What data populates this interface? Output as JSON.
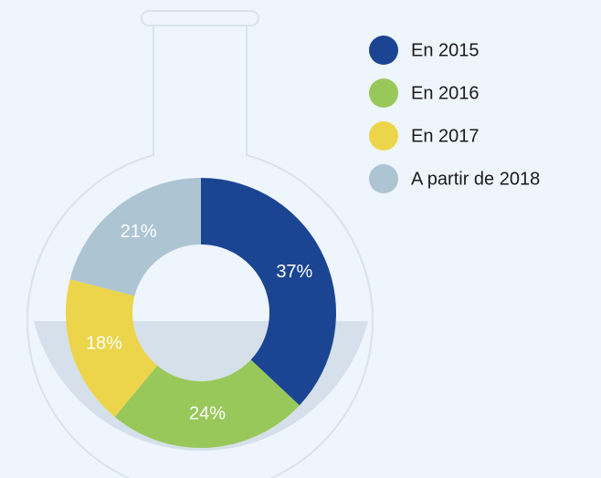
{
  "chart_data": {
    "type": "donut",
    "categories": [
      "En 2015",
      "En 2016",
      "En 2017",
      "A partir de 2018"
    ],
    "values": [
      37,
      24,
      18,
      21
    ],
    "value_labels": [
      "37%",
      "24%",
      "18%",
      "21%"
    ],
    "colors": [
      "#1b4593",
      "#98c85a",
      "#ecd54a",
      "#adc4d3"
    ],
    "legend": "top-right"
  }
}
